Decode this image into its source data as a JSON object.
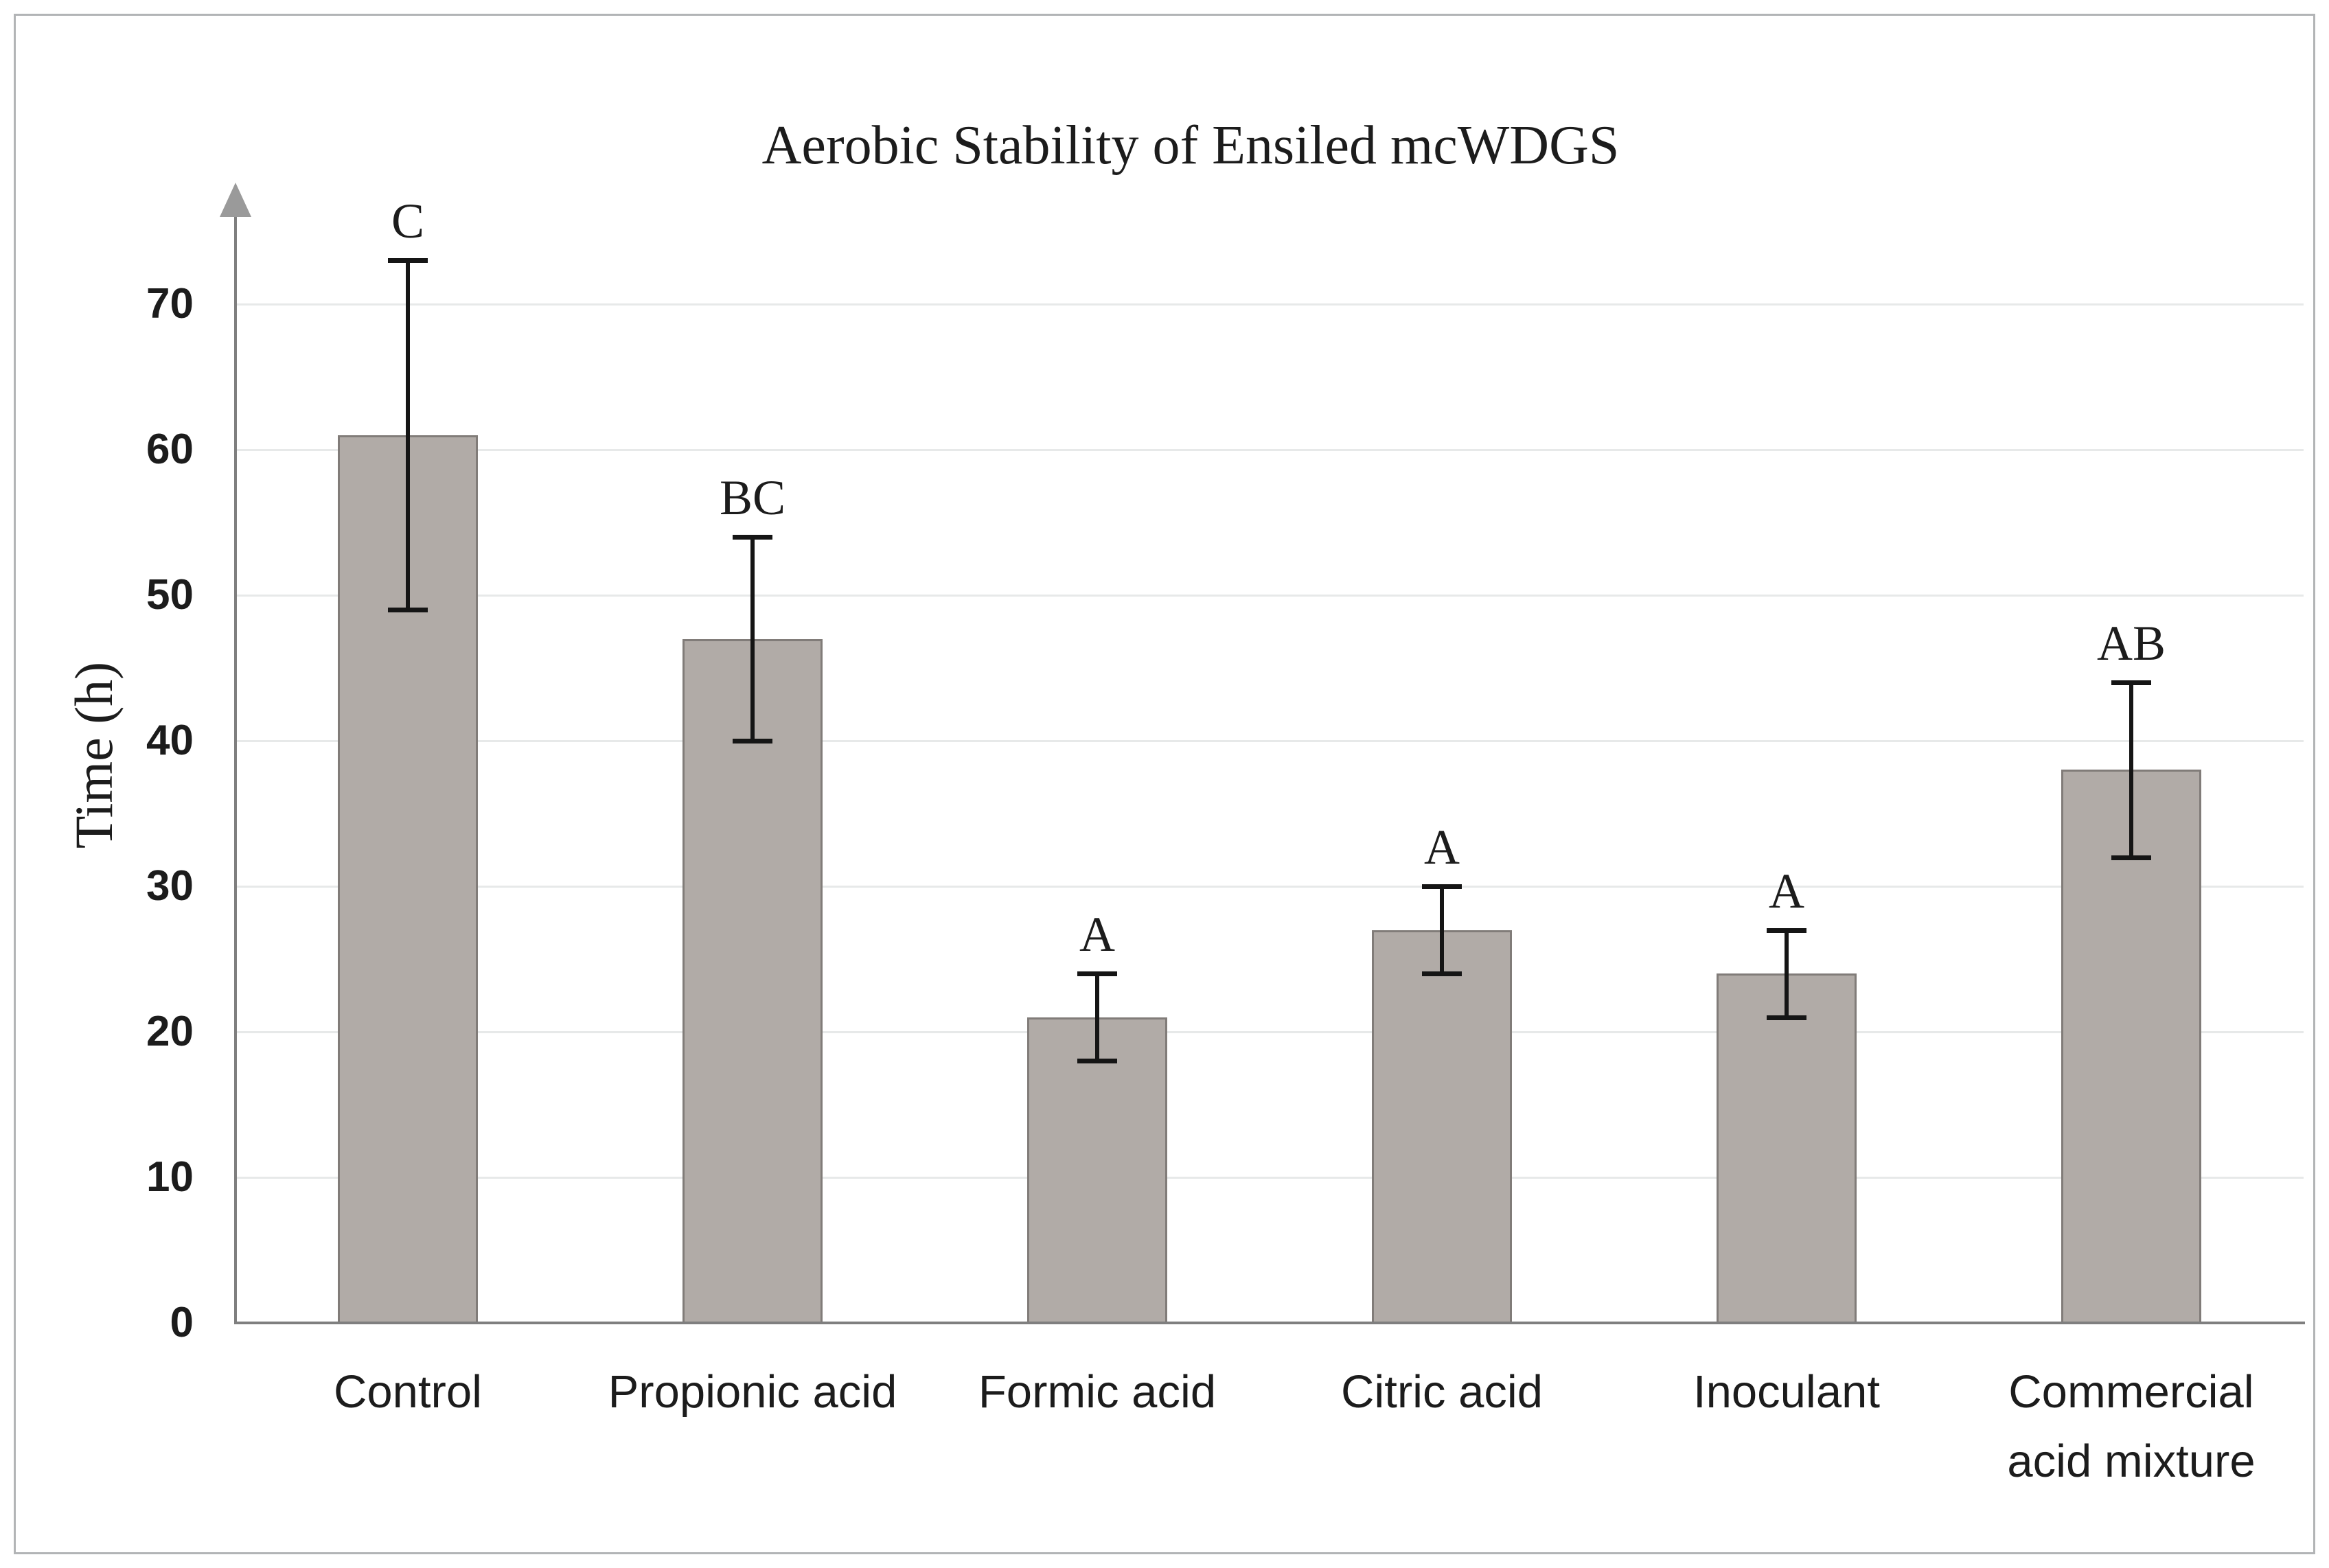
{
  "chart_data": {
    "type": "bar",
    "title": "Aerobic Stability of Ensiled mcWDGS",
    "xlabel": "",
    "ylabel": "Time (h)",
    "ylim": [
      0,
      78
    ],
    "yticks": [
      0,
      10,
      20,
      30,
      40,
      50,
      60,
      70
    ],
    "grid": "horizontal gridlines every 10, light gray",
    "legend_position": "none",
    "categories": [
      "Control",
      "Propionic acid",
      "Formic acid",
      "Citric acid",
      "Inoculant",
      "Commercial acid mixture"
    ],
    "values": [
      61,
      47,
      21,
      27,
      24,
      38
    ],
    "error_low": [
      49,
      40,
      18,
      24,
      21,
      32
    ],
    "error_high": [
      73,
      54,
      24,
      30,
      27,
      44
    ],
    "significance_letters": [
      "C",
      "BC",
      "A",
      "A",
      "A",
      "AB"
    ],
    "colors": {
      "bar_fill": "#b1aba7",
      "bar_border": "#817c79",
      "error_bar": "#151515",
      "gridline": "#e7e9e9",
      "axis": "#7f7f7f",
      "text": "#1c1c1c",
      "frame_border": "#b2b4b6"
    }
  }
}
